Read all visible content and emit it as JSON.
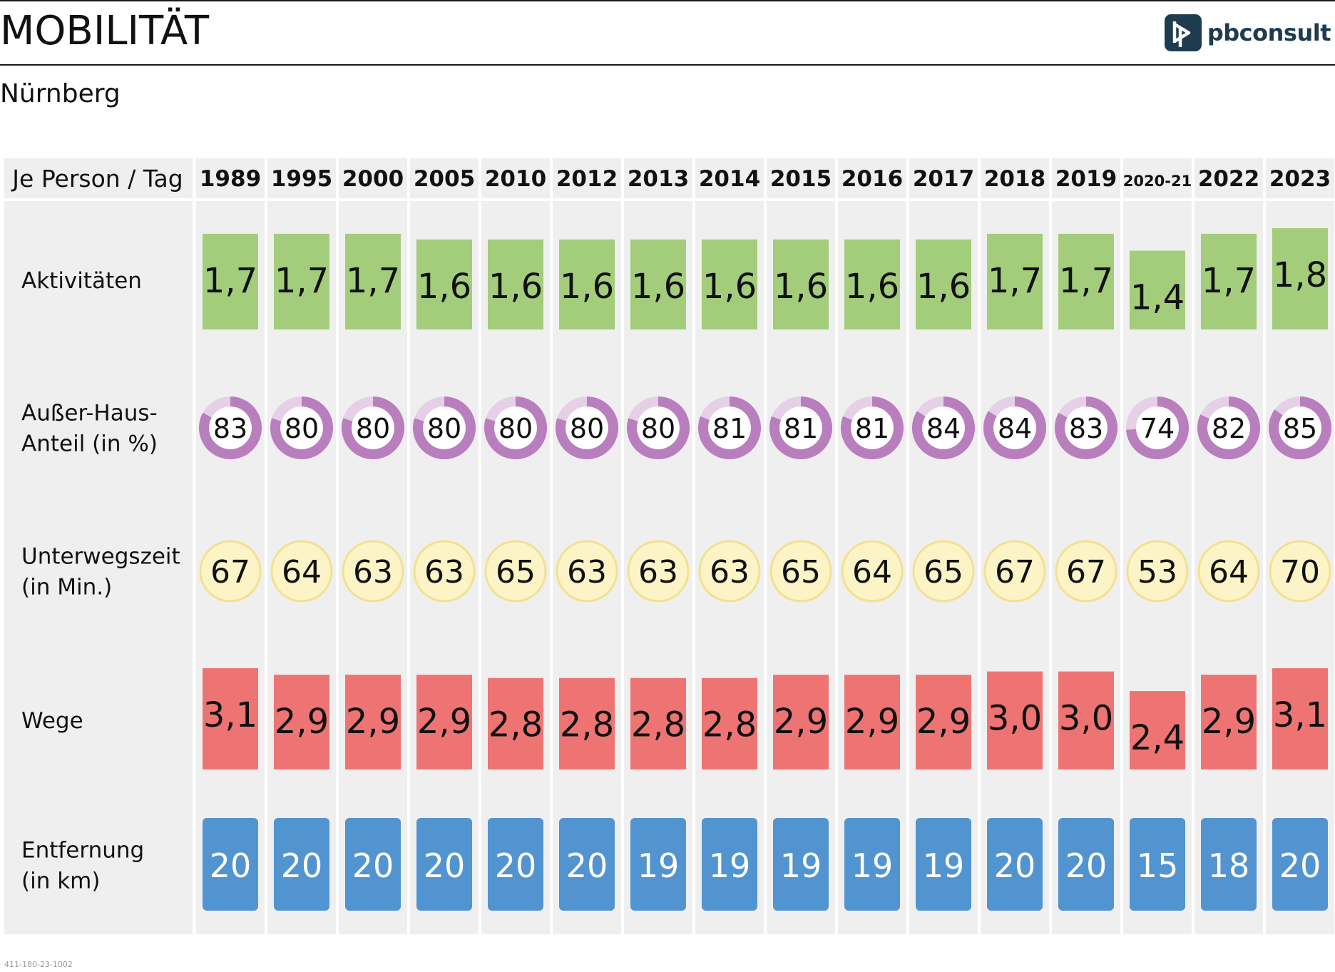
{
  "header": {
    "title": "MOBILITÄT",
    "subtitle": "Nürnberg",
    "logo_text": "pbconsult",
    "doc_id": "411-180-23-1002"
  },
  "chart_data": {
    "type": "table",
    "corner_label": "Je Person / Tag",
    "years": [
      "1989",
      "1995",
      "2000",
      "2005",
      "2010",
      "2012",
      "2013",
      "2014",
      "2015",
      "2016",
      "2017",
      "2018",
      "2019",
      "2020-21",
      "2022",
      "2023"
    ],
    "rows": [
      {
        "key": "aktivitaeten",
        "label": [
          "Aktivitäten"
        ],
        "shape": "bar",
        "color": "#a3cd7b",
        "values": [
          1.7,
          1.7,
          1.7,
          1.6,
          1.6,
          1.6,
          1.6,
          1.6,
          1.6,
          1.6,
          1.6,
          1.7,
          1.7,
          1.4,
          1.7,
          1.8
        ],
        "labels": [
          "1,7",
          "1,7",
          "1,7",
          "1,6",
          "1,6",
          "1,6",
          "1,6",
          "1,6",
          "1,6",
          "1,6",
          "1,6",
          "1,7",
          "1,7",
          "1,4",
          "1,7",
          "1,8"
        ]
      },
      {
        "key": "ausser_haus",
        "label": [
          "Außer-Haus-",
          "Anteil (in %)"
        ],
        "shape": "donut",
        "color": "#b97ebd",
        "track_color": "#e5d0e7",
        "values": [
          83,
          80,
          80,
          80,
          80,
          80,
          80,
          81,
          81,
          81,
          84,
          84,
          83,
          74,
          82,
          85
        ],
        "labels": [
          "83",
          "80",
          "80",
          "80",
          "80",
          "80",
          "80",
          "81",
          "81",
          "81",
          "84",
          "84",
          "83",
          "74",
          "82",
          "85"
        ]
      },
      {
        "key": "unterwegszeit",
        "label": [
          "Unterwegszeit",
          "(in Min.)"
        ],
        "shape": "circle",
        "color": "#fcf4c7",
        "stroke_color": "#f2e190",
        "values": [
          67,
          64,
          63,
          63,
          65,
          63,
          63,
          63,
          65,
          64,
          65,
          67,
          67,
          53,
          64,
          70
        ],
        "labels": [
          "67",
          "64",
          "63",
          "63",
          "65",
          "63",
          "63",
          "63",
          "65",
          "64",
          "65",
          "67",
          "67",
          "53",
          "64",
          "70"
        ]
      },
      {
        "key": "wege",
        "label": [
          "Wege"
        ],
        "shape": "bar",
        "color": "#ee7474",
        "values": [
          3.1,
          2.9,
          2.9,
          2.9,
          2.8,
          2.8,
          2.8,
          2.8,
          2.9,
          2.9,
          2.9,
          3.0,
          3.0,
          2.4,
          2.9,
          3.1
        ],
        "labels": [
          "3,1",
          "2,9",
          "2,9",
          "2,9",
          "2,8",
          "2,8",
          "2,8",
          "2,8",
          "2,9",
          "2,9",
          "2,9",
          "3,0",
          "3,0",
          "2,4",
          "2,9",
          "3,1"
        ]
      },
      {
        "key": "entfernung",
        "label": [
          "Entfernung",
          "(in km)"
        ],
        "shape": "tile",
        "color": "#5294d0",
        "values": [
          20,
          20,
          20,
          20,
          20,
          20,
          19,
          19,
          19,
          19,
          19,
          20,
          20,
          15,
          18,
          20
        ],
        "labels": [
          "20",
          "20",
          "20",
          "20",
          "20",
          "20",
          "19",
          "19",
          "19",
          "19",
          "19",
          "20",
          "20",
          "15",
          "18",
          "20"
        ]
      }
    ]
  }
}
